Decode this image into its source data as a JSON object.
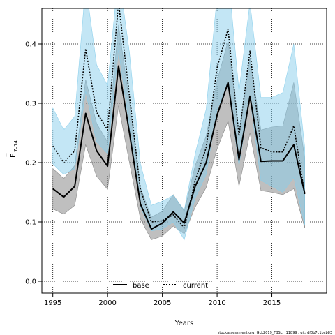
{
  "chart_data": {
    "type": "area",
    "xlabel": "Years",
    "ylabel": "F",
    "ylabel_bar": "‾",
    "ylabel_sub": "7–14",
    "xlim": [
      1994,
      2020
    ],
    "ylim": [
      -0.02,
      0.46
    ],
    "xticks": [
      1995,
      2000,
      2005,
      2010,
      2015
    ],
    "yticks": [
      0.0,
      0.1,
      0.2,
      0.3,
      0.4
    ],
    "ytick_labels": [
      "0.0",
      "0.1",
      "0.2",
      "0.3",
      "0.4"
    ],
    "grid": true,
    "legend_placement": "bottom-center",
    "x": [
      1995,
      1996,
      1997,
      1998,
      1999,
      2000,
      2001,
      2002,
      2003,
      2004,
      2005,
      2006,
      2007,
      2008,
      2009,
      2010,
      2011,
      2012,
      2013,
      2014,
      2015,
      2016,
      2017,
      2018
    ],
    "series": [
      {
        "name": "base",
        "color": "#000000",
        "band_color": "#808080",
        "line_style": "solid",
        "values": [
          0.156,
          0.142,
          0.16,
          0.283,
          0.22,
          0.194,
          0.363,
          0.25,
          0.13,
          0.088,
          0.098,
          0.117,
          0.098,
          0.16,
          0.2,
          0.28,
          0.335,
          0.205,
          0.312,
          0.202,
          0.203,
          0.203,
          0.23,
          0.148
        ],
        "lower": [
          0.122,
          0.113,
          0.128,
          0.23,
          0.177,
          0.155,
          0.296,
          0.2,
          0.105,
          0.07,
          0.076,
          0.093,
          0.08,
          0.125,
          0.158,
          0.223,
          0.27,
          0.16,
          0.25,
          0.153,
          0.15,
          0.146,
          0.156,
          0.09
        ],
        "upper": [
          0.19,
          0.173,
          0.195,
          0.34,
          0.266,
          0.235,
          0.432,
          0.302,
          0.158,
          0.108,
          0.118,
          0.146,
          0.118,
          0.195,
          0.245,
          0.338,
          0.405,
          0.25,
          0.375,
          0.255,
          0.26,
          0.262,
          0.335,
          0.207
        ]
      },
      {
        "name": "current",
        "color": "#000000",
        "band_color": "#87ceeb",
        "line_style": "dotted",
        "values": [
          0.228,
          0.2,
          0.22,
          0.392,
          0.285,
          0.255,
          0.47,
          0.312,
          0.155,
          0.1,
          0.102,
          0.112,
          0.09,
          0.17,
          0.225,
          0.36,
          0.425,
          0.245,
          0.388,
          0.225,
          0.218,
          0.218,
          0.262,
          0.147
        ],
        "lower": [
          0.198,
          0.18,
          0.19,
          0.32,
          0.235,
          0.215,
          0.39,
          0.26,
          0.125,
          0.085,
          0.088,
          0.1,
          0.07,
          0.14,
          0.18,
          0.29,
          0.33,
          0.195,
          0.31,
          0.17,
          0.16,
          0.15,
          0.175,
          0.095
        ],
        "upper": [
          0.292,
          0.255,
          0.278,
          0.5,
          0.365,
          0.33,
          0.52,
          0.385,
          0.198,
          0.128,
          0.135,
          0.145,
          0.12,
          0.215,
          0.29,
          0.48,
          0.52,
          0.32,
          0.47,
          0.31,
          0.31,
          0.318,
          0.4,
          0.225
        ]
      }
    ]
  },
  "footer": "stockassessment.org,  GLL2019_FBSL, r11899 ,  git: df0b7c1bcb83"
}
